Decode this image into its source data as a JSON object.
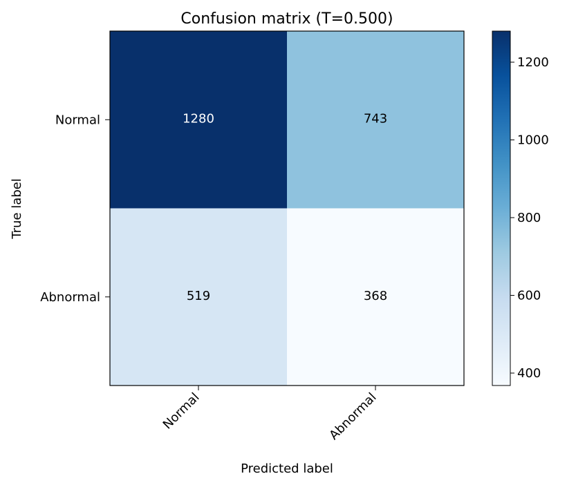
{
  "chart_data": {
    "type": "heatmap",
    "title": "Confusion matrix (T=0.500)",
    "xlabel": "Predicted label",
    "ylabel": "True label",
    "x_categories": [
      "Normal",
      "Abnormal"
    ],
    "y_categories": [
      "Normal",
      "Abnormal"
    ],
    "values": [
      [
        1280,
        743
      ],
      [
        519,
        368
      ]
    ],
    "colormap": "Blues",
    "color_range": [
      368,
      1280
    ],
    "colorbar_ticks": [
      400,
      600,
      800,
      1000,
      1200
    ],
    "legend": "colorbar-right",
    "grid": false,
    "cell_label_colors": {
      "dark": "#000000",
      "light": "#ffffff"
    }
  }
}
